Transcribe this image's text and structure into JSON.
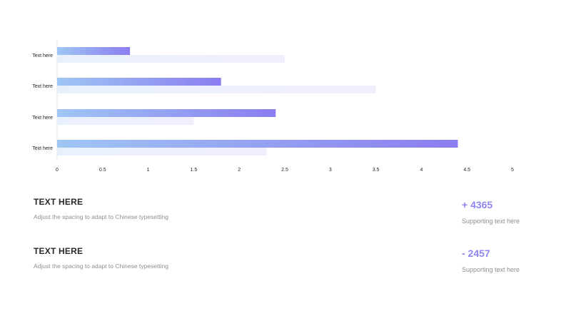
{
  "chart_data": {
    "type": "bar",
    "orientation": "horizontal",
    "categories": [
      "Text here",
      "Text here",
      "Text here",
      "Text here"
    ],
    "series": [
      {
        "values": [
          0.8,
          1.8,
          2.4,
          4.4
        ]
      },
      {
        "values": [
          2.5,
          3.5,
          1.5,
          2.3
        ]
      }
    ],
    "xlim": [
      0,
      5
    ],
    "xticks": [
      "0",
      "0.5",
      "1",
      "1.5",
      "2",
      "2.5",
      "3",
      "3.5",
      "4",
      "4.5",
      "5"
    ],
    "grid": false,
    "colors": {
      "primary_start": "#9fc6f4",
      "primary_end": "#8b7df0",
      "secondary": "#eeeefc"
    }
  },
  "rows": [
    {
      "heading": "TEXT HERE",
      "description": "Adjust the spacing to adapt to Chinese typesetting",
      "stat": "+ 4365",
      "stat_caption": "Supporting text here"
    },
    {
      "heading": "TEXT HERE",
      "description": "Adjust the spacing to adapt to Chinese typesetting",
      "stat": "- 2457",
      "stat_caption": "Supporting text here"
    }
  ],
  "accent_color": "#8d86ee"
}
